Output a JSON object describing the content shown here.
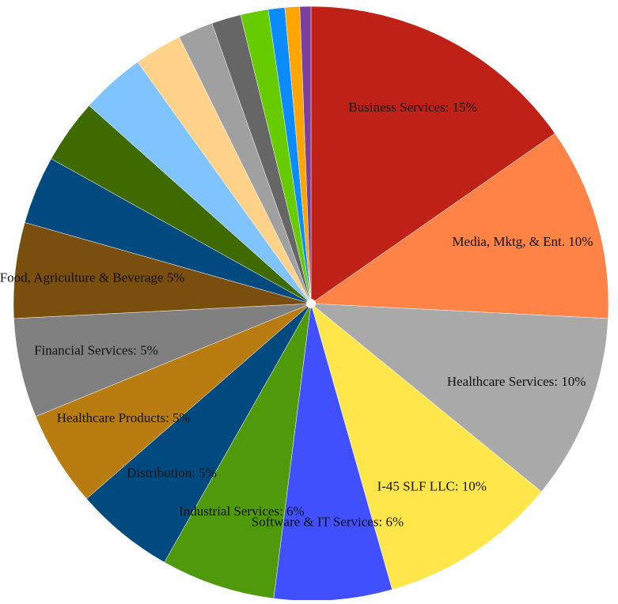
{
  "chart_data": {
    "type": "pie",
    "labels": [
      "Business Services: 15%",
      "Media, Mktg, & Ent. 10%",
      "Healthcare Services: 10%",
      "I-45 SLF LLC: 10%",
      "Software & IT Services: 6%",
      "Industrial Services: 6%",
      "Distribution: 5%",
      "Healthcare Products: 5%",
      "Financial Services: 5%",
      "Food, Agriculture & Beverage 5%",
      null,
      null,
      null,
      null,
      null,
      null,
      null,
      null,
      null,
      null
    ],
    "values": [
      15.3,
      10.5,
      10.1,
      9.7,
      6.4,
      6.2,
      5.4,
      5.2,
      5.4,
      5.2,
      3.7,
      3.5,
      3.5,
      2.6,
      1.9,
      1.6,
      1.5,
      0.9,
      0.8,
      0.6
    ],
    "colors": [
      "#bf2116",
      "#ff8247",
      "#a9a9a9",
      "#ffe64a",
      "#4050ff",
      "#4f9a0a",
      "#004a80",
      "#b87c10",
      "#808080",
      "#7a4e0e",
      "#004a80",
      "#3f6a00",
      "#80c4ff",
      "#ffd28a",
      "#a0a0a0",
      "#666666",
      "#66cc00",
      "#0a8cff",
      "#ffa500",
      "#7b3fa0"
    ]
  }
}
